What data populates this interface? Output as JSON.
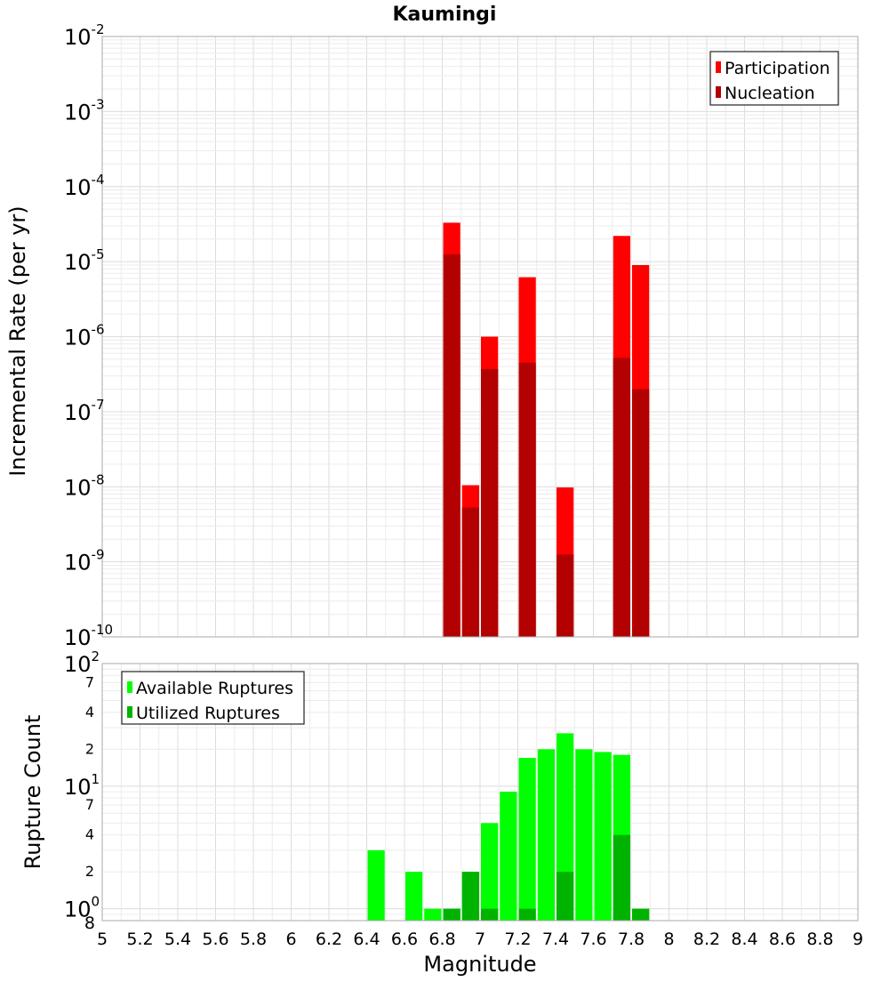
{
  "chart_data": [
    {
      "type": "bar",
      "title": "Kaumingi",
      "xlabel": "",
      "ylabel": "Incremental Rate (per yr)",
      "y_scale": "log",
      "xlim": [
        5,
        9
      ],
      "ylim": [
        1e-10,
        0.01
      ],
      "y_tick_labels": [
        "10-10",
        "10-9",
        "10-8",
        "10-7",
        "10-6",
        "10-5",
        "10-4",
        "10-3",
        "10-2"
      ],
      "x": [
        6.85,
        6.95,
        7.05,
        7.25,
        7.45,
        7.75,
        7.85
      ],
      "bar_width": 0.1,
      "series": [
        {
          "name": "Participation",
          "color": "#ff0000",
          "values": [
            3.3e-05,
            1.05e-08,
            1e-06,
            6.2e-06,
            9.8e-09,
            2.2e-05,
            9e-06
          ]
        },
        {
          "name": "Nucleation",
          "color": "#b30000",
          "values": [
            1.25e-05,
            5.3e-09,
            3.7e-07,
            4.5e-07,
            1.25e-09,
            5.2e-07,
            2e-07
          ]
        }
      ],
      "legend_position": "top-right",
      "grid": true
    },
    {
      "type": "bar",
      "title": "",
      "xlabel": "Magnitude",
      "ylabel": "Rupture Count",
      "y_scale": "log",
      "xlim": [
        5,
        9
      ],
      "ylim": [
        0.8,
        100
      ],
      "x_tick_labels": [
        "5",
        "5.2",
        "5.4",
        "5.6",
        "5.8",
        "6",
        "6.2",
        "6.4",
        "6.6",
        "6.8",
        "7",
        "7.2",
        "7.4",
        "7.6",
        "7.8",
        "8",
        "8.2",
        "8.4",
        "8.6",
        "8.8",
        "9"
      ],
      "x": [
        6.45,
        6.65,
        6.75,
        6.85,
        6.95,
        7.05,
        7.15,
        7.25,
        7.35,
        7.45,
        7.55,
        7.65,
        7.75,
        7.85
      ],
      "bar_width": 0.1,
      "series": [
        {
          "name": "Available Ruptures",
          "color": "#00ff00",
          "values": [
            3,
            2,
            1,
            1,
            2,
            5,
            9,
            17,
            20,
            27,
            20,
            19,
            18,
            1
          ]
        },
        {
          "name": "Utilized Ruptures",
          "color": "#00b300",
          "values": [
            0,
            0,
            0,
            1,
            2,
            1,
            0,
            1,
            0,
            2,
            0,
            0,
            4,
            1
          ]
        }
      ],
      "legend_position": "top-left",
      "grid": true
    }
  ]
}
